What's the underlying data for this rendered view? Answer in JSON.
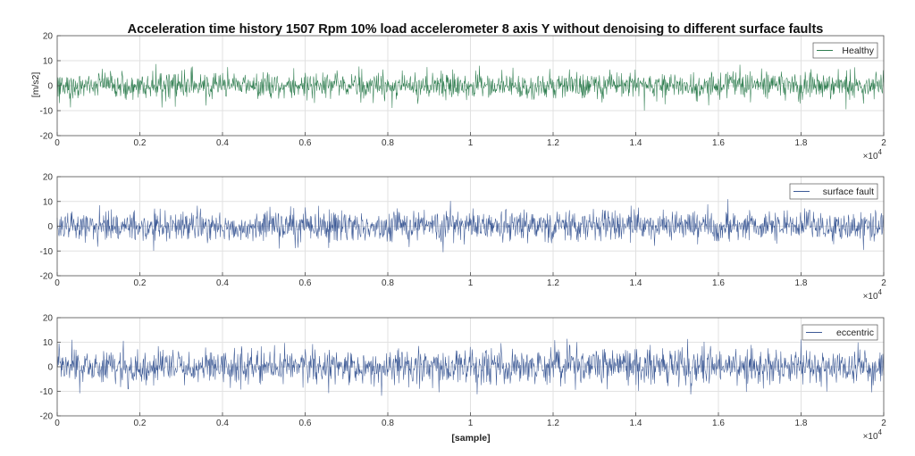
{
  "chart_data": {
    "type": "line",
    "title": "Acceleration time history 1507 Rpm 10% load accelerometer 8 axis Y without denoising to different surface faults",
    "xlabel": "[sample]",
    "ylabel": "[m/s2]",
    "x_exponent_label": "10",
    "x_exponent_power": "4",
    "xlim": [
      0,
      20000
    ],
    "ylim": [
      -20,
      20
    ],
    "xticks": [
      0,
      2000,
      4000,
      6000,
      8000,
      10000,
      12000,
      14000,
      16000,
      18000,
      20000
    ],
    "xtick_labels": [
      "0",
      "0.2",
      "0.4",
      "0.6",
      "0.8",
      "1",
      "1.2",
      "1.4",
      "1.6",
      "1.8",
      "2"
    ],
    "yticks": [
      -20,
      -10,
      0,
      10,
      20
    ],
    "ytick_labels": [
      "-20",
      "-10",
      "0",
      "10",
      "20"
    ],
    "grid": true,
    "legend_position": "top-right",
    "series": [
      {
        "name": "Healthy",
        "color": "#2e7d4f",
        "x_range": [
          0,
          20000
        ],
        "amplitude_peak": 10,
        "amplitude_rms": 2.6
      },
      {
        "name": "surface fault",
        "color": "#3d5a96",
        "x_range": [
          0,
          20000
        ],
        "amplitude_peak": 11,
        "amplitude_rms": 3.0
      },
      {
        "name": "eccentric",
        "color": "#3d5a96",
        "x_range": [
          0,
          20000
        ],
        "amplitude_peak": 12,
        "amplitude_rms": 3.6
      }
    ]
  }
}
